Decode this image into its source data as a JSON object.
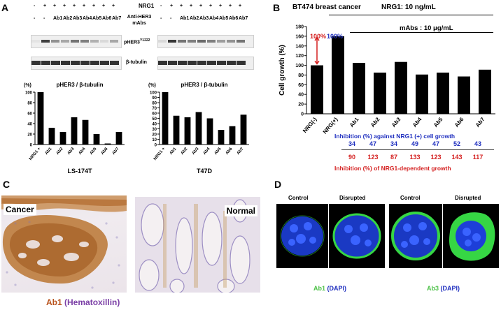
{
  "panel_a": {
    "label": "A",
    "header_nrg1": "NRG1",
    "nrg1_signs": [
      "-",
      "+",
      "+",
      "+",
      "+",
      "+",
      "+",
      "+",
      "+"
    ],
    "mab_signs": [
      "-",
      "-",
      "Ab1",
      "Ab2",
      "Ab3",
      "Ab4",
      "Ab5",
      "Ab6",
      "Ab7"
    ],
    "anti_label_line1": "Anti-HER3",
    "anti_label_line2": "mAbs",
    "blot_label_1": "pHER3",
    "blot_label_1_sup": "Y1222",
    "blot_label_2": "β-tubulin"
  },
  "panel_b": {
    "label": "B",
    "nrg1_dose": "NRG1: 10 ng/mL",
    "mabs_dose": "mAbs : 10 μg/mL",
    "inhibition_nrg1_caption": "Inhibition (%) against NRG1 (+) cell growth",
    "inhibition_nrg1_values": [
      "34",
      "47",
      "34",
      "49",
      "47",
      "52",
      "43"
    ],
    "inhibition_dep_values": [
      "90",
      "123",
      "87",
      "133",
      "123",
      "143",
      "117"
    ],
    "inhibition_dep_caption": "Inhibition (%) of NRG1-dependent growth",
    "annot_100_red": "100%",
    "annot_100_blue": "100%",
    "blue_color": "#1f2fbf",
    "red_color": "#d42020"
  },
  "panel_c": {
    "label": "C",
    "cancer_label": "Cancer",
    "normal_label": "Normal",
    "caption_ab": "Ab1",
    "caption_stain": "(Hematoxillin)"
  },
  "panel_d": {
    "label": "D",
    "control_1": "Control",
    "disrupted_1": "Disrupted",
    "control_2": "Control",
    "disrupted_2": "Disrupted",
    "caption_ab1": "Ab1",
    "caption_ab3": "Ab3",
    "caption_dapi": "(DAPI)"
  },
  "chart_data": [
    {
      "type": "bar",
      "title": "pHER3 / β-tubulin",
      "xlabel": "LS-174T",
      "ylabel": "(%)",
      "categories": [
        "NRG1 +",
        "Ab1",
        "Ab2",
        "Ab3",
        "Ab4",
        "Ab5",
        "Ab6",
        "Ab7"
      ],
      "values": [
        100,
        32,
        24,
        52,
        47,
        20,
        2,
        24
      ],
      "ylim": [
        0,
        100
      ],
      "yticks": [
        0,
        20,
        40,
        60,
        80,
        100
      ]
    },
    {
      "type": "bar",
      "title": "pHER3 / β-tubulin",
      "xlabel": "T47D",
      "ylabel": "(%)",
      "categories": [
        "NRG1 +",
        "Ab1",
        "Ab2",
        "Ab3",
        "Ab4",
        "Ab5",
        "Ab6",
        "Ab7"
      ],
      "values": [
        100,
        55,
        52,
        62,
        50,
        28,
        35,
        57
      ],
      "ylim": [
        0,
        100
      ],
      "yticks": [
        0,
        10,
        20,
        30,
        40,
        50,
        60,
        70,
        80,
        90,
        100
      ]
    },
    {
      "type": "bar",
      "title": "BT474 breast cancer",
      "xlabel": "",
      "ylabel": "Cell growth (%)",
      "categories": [
        "NRG(-)",
        "NRG(+)",
        "Ab1",
        "Ab2",
        "Ab3",
        "Ab4",
        "Ab5",
        "Ab6",
        "Ab7"
      ],
      "values": [
        100,
        160,
        105,
        85,
        107,
        81,
        85,
        77,
        91
      ],
      "ylim": [
        0,
        180
      ],
      "yticks": [
        0,
        20,
        40,
        60,
        80,
        100,
        120,
        140,
        160,
        180
      ]
    }
  ]
}
